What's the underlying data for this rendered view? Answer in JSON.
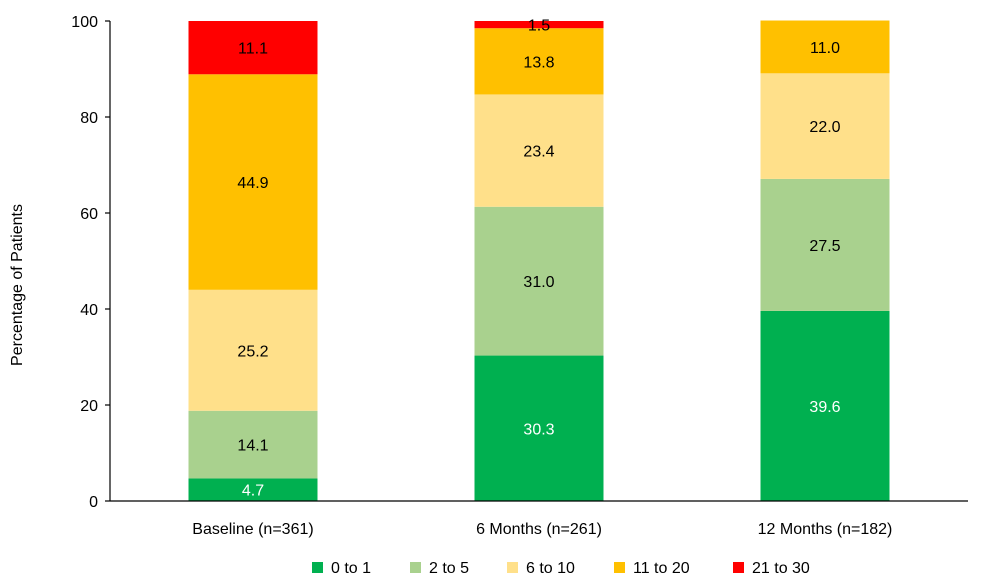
{
  "chart_data": {
    "type": "bar",
    "stacked": true,
    "title": "",
    "xlabel": "",
    "ylabel": "Percentage of Patients",
    "ylim": [
      0,
      100
    ],
    "yticks": [
      "0",
      "20",
      "40",
      "60",
      "80",
      "100"
    ],
    "categories": [
      "Baseline (n=361)",
      "6 Months (n=261)",
      "12 Months (n=182)"
    ],
    "series": [
      {
        "name": "0 to 1",
        "color": "#00b050",
        "label_color": "#ffffff",
        "values": [
          4.7,
          30.3,
          39.6
        ],
        "labels": [
          "4.7",
          "30.3",
          "39.6"
        ]
      },
      {
        "name": "2 to 5",
        "color": "#a9d18e",
        "label_color": "#000000",
        "values": [
          14.1,
          31.0,
          27.5
        ],
        "labels": [
          "14.1",
          "31.0",
          "27.5"
        ]
      },
      {
        "name": "6 to 10",
        "color": "#ffe08a",
        "label_color": "#000000",
        "values": [
          25.2,
          23.4,
          22.0
        ],
        "labels": [
          "25.2",
          "23.4",
          "22.0"
        ]
      },
      {
        "name": "11 to 20",
        "color": "#ffc000",
        "label_color": "#000000",
        "values": [
          44.9,
          13.8,
          11.0
        ],
        "labels": [
          "44.9",
          "13.8",
          "11.0"
        ]
      },
      {
        "name": "21 to 30",
        "color": "#ff0000",
        "label_color": "#000000",
        "values": [
          11.1,
          1.5,
          0
        ],
        "labels": [
          "11.1",
          "1.5",
          ""
        ]
      }
    ],
    "legend": "bottom",
    "grid": false
  }
}
